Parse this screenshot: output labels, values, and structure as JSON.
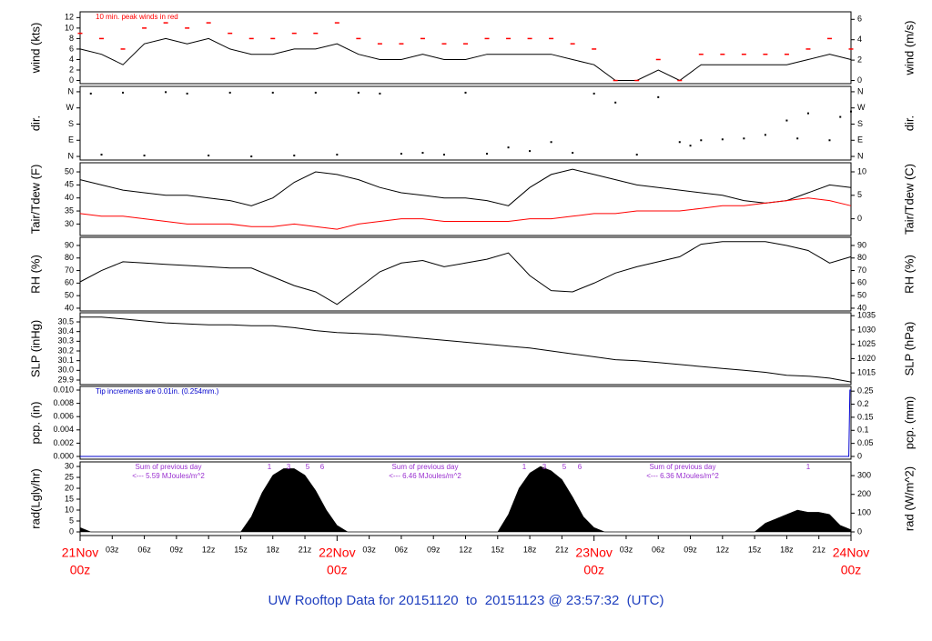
{
  "title": "UW Rooftop Data for 20151120  to  20151123 @ 23:57:32  (UTC)",
  "chart_data": [
    {
      "type": "line",
      "ylabel": "wind (kts)",
      "y2label": "wind (m/s)",
      "annotation": "10 min. peak winds in red",
      "xlim": [
        0,
        72
      ],
      "ylim": [
        -0.6,
        13.1
      ],
      "yticks": [
        0,
        2,
        4,
        6,
        8,
        10,
        12
      ],
      "y2lim": [
        -0.31,
        6.74
      ],
      "y2ticks": [
        0,
        2,
        4,
        6
      ],
      "x": [
        0,
        2,
        4,
        6,
        8,
        10,
        12,
        14,
        16,
        18,
        20,
        22,
        24,
        26,
        28,
        30,
        32,
        34,
        36,
        38,
        40,
        42,
        44,
        46,
        48,
        50,
        52,
        54,
        56,
        58,
        60,
        62,
        64,
        66,
        68,
        70,
        72
      ],
      "series": [
        {
          "color": "#000000",
          "values": [
            6,
            5,
            3,
            7,
            8,
            7,
            8,
            6,
            5,
            5,
            6,
            6,
            7,
            5,
            4,
            4,
            5,
            4,
            4,
            5,
            5,
            5,
            5,
            4,
            3,
            0,
            0,
            2,
            0,
            3,
            3,
            3,
            3,
            3,
            4,
            5,
            4
          ]
        },
        {
          "color": "#ff0000",
          "marker": "dash",
          "values": [
            9,
            8,
            6,
            10,
            11,
            10,
            11,
            9,
            8,
            8,
            9,
            9,
            11,
            8,
            7,
            7,
            8,
            7,
            7,
            8,
            8,
            8,
            8,
            7,
            6,
            0,
            0,
            4,
            0,
            5,
            5,
            5,
            5,
            5,
            6,
            8,
            6
          ]
        }
      ]
    },
    {
      "type": "scatter",
      "ylabel": "dir.",
      "y2label": "dir.",
      "xlim": [
        0,
        72
      ],
      "ylim": [
        -20,
        390
      ],
      "yticks": [
        {
          "value": 0,
          "label": "N"
        },
        {
          "value": 90,
          "label": "E"
        },
        {
          "value": 180,
          "label": "S"
        },
        {
          "value": 270,
          "label": "W"
        },
        {
          "value": 360,
          "label": "N"
        }
      ],
      "y2lim": [
        -20,
        390
      ],
      "y2ticks": [
        {
          "value": 0,
          "label": "N"
        },
        {
          "value": 90,
          "label": "E"
        },
        {
          "value": 180,
          "label": "S"
        },
        {
          "value": 270,
          "label": "W"
        },
        {
          "value": 360,
          "label": "N"
        }
      ],
      "x": [
        1,
        2,
        4,
        6,
        8,
        10,
        12,
        14,
        16,
        18,
        20,
        22,
        24,
        26,
        28,
        30,
        32,
        34,
        36,
        38,
        40,
        42,
        44,
        46,
        48,
        50,
        52,
        54,
        56,
        57,
        58,
        60,
        62,
        64,
        66,
        67,
        68,
        70,
        71,
        72
      ],
      "series": [
        {
          "color": "#000000",
          "values": [
            350,
            10,
            355,
            5,
            358,
            350,
            5,
            355,
            0,
            355,
            5,
            355,
            10,
            355,
            350,
            15,
            20,
            10,
            355,
            15,
            50,
            30,
            80,
            20,
            350,
            300,
            10,
            330,
            80,
            60,
            90,
            95,
            100,
            120,
            200,
            100,
            240,
            90,
            220,
            250
          ]
        }
      ]
    },
    {
      "type": "line",
      "ylabel": "Tair/Tdew (F)",
      "y2label": "Tair/Tdew (C)",
      "xlim": [
        0,
        72
      ],
      "ylim": [
        25.6,
        53.5
      ],
      "yticks": [
        30,
        35,
        40,
        45,
        50
      ],
      "y2lim": [
        -3.56,
        11.94
      ],
      "y2ticks": [
        0,
        5,
        10
      ],
      "x": [
        0,
        2,
        4,
        6,
        8,
        10,
        12,
        14,
        16,
        18,
        20,
        22,
        24,
        26,
        28,
        30,
        32,
        34,
        36,
        38,
        40,
        42,
        44,
        46,
        48,
        50,
        52,
        54,
        56,
        58,
        60,
        62,
        64,
        66,
        68,
        70,
        72
      ],
      "series": [
        {
          "color": "#000000",
          "values": [
            47,
            45,
            43,
            42,
            41,
            41,
            40,
            39,
            37,
            40,
            46,
            50,
            49,
            47,
            44,
            42,
            41,
            40,
            40,
            39,
            37,
            44,
            49,
            51,
            49,
            47,
            45,
            44,
            43,
            42,
            41,
            39,
            38,
            39,
            42,
            45,
            44
          ]
        },
        {
          "color": "#ff0000",
          "values": [
            34,
            33,
            33,
            32,
            31,
            30,
            30,
            30,
            29,
            29,
            30,
            29,
            28,
            30,
            31,
            32,
            32,
            31,
            31,
            31,
            31,
            32,
            32,
            33,
            34,
            34,
            35,
            35,
            35,
            36,
            37,
            37,
            38,
            39,
            40,
            39,
            37
          ]
        }
      ]
    },
    {
      "type": "line",
      "ylabel": "RH (%)",
      "y2label": "RH (%)",
      "xlim": [
        0,
        72
      ],
      "ylim": [
        37.8,
        96.5
      ],
      "yticks": [
        40,
        50,
        60,
        70,
        80,
        90
      ],
      "y2lim": [
        37.8,
        96.5
      ],
      "y2ticks": [
        40,
        50,
        60,
        70,
        80,
        90
      ],
      "x": [
        0,
        2,
        4,
        6,
        8,
        10,
        12,
        14,
        16,
        18,
        20,
        22,
        24,
        26,
        28,
        30,
        32,
        34,
        36,
        38,
        40,
        42,
        44,
        46,
        48,
        50,
        52,
        54,
        56,
        58,
        60,
        62,
        64,
        66,
        68,
        70,
        72
      ],
      "series": [
        {
          "color": "#000000",
          "values": [
            61,
            70,
            77,
            76,
            75,
            74,
            73,
            72,
            72,
            65,
            58,
            53,
            43,
            56,
            69,
            76,
            78,
            73,
            76,
            79,
            84,
            66,
            54,
            53,
            60,
            68,
            73,
            77,
            81,
            91,
            93,
            93,
            93,
            90,
            86,
            76,
            81
          ]
        }
      ]
    },
    {
      "type": "line",
      "ylabel": "SLP (inHg)",
      "y2label": "SLP (hPa)",
      "xlim": [
        0,
        72
      ],
      "ylim": [
        29.853,
        30.594
      ],
      "yticks": [
        29.9,
        {
          "value": 30,
          "label": "30.0"
        },
        30.1,
        30.2,
        30.3,
        30.4,
        30.5
      ],
      "y2lim": [
        1010.93,
        1036.02
      ],
      "y2ticks": [
        1015,
        1020,
        1025,
        1030,
        1035
      ],
      "x": [
        0,
        2,
        4,
        6,
        8,
        10,
        12,
        14,
        16,
        18,
        20,
        22,
        24,
        26,
        28,
        30,
        32,
        34,
        36,
        38,
        40,
        42,
        44,
        46,
        48,
        50,
        52,
        54,
        56,
        58,
        60,
        62,
        64,
        66,
        68,
        70,
        72
      ],
      "series": [
        {
          "color": "#000000",
          "values": [
            30.55,
            30.55,
            30.53,
            30.51,
            30.49,
            30.48,
            30.47,
            30.47,
            30.46,
            30.46,
            30.44,
            30.41,
            30.39,
            30.38,
            30.37,
            30.35,
            30.33,
            30.31,
            30.29,
            30.27,
            30.25,
            30.23,
            30.2,
            30.17,
            30.14,
            30.11,
            30.1,
            30.08,
            30.06,
            30.04,
            30.02,
            30,
            29.98,
            29.95,
            29.94,
            29.92,
            29.88
          ]
        }
      ]
    },
    {
      "type": "line",
      "ylabel": "pcp. (in)",
      "y2label": "pcp. (mm)",
      "annotation": "Tip increments are 0.01in. (0.254mm.)",
      "xlim": [
        0,
        72
      ],
      "ylim": [
        -0.00041,
        0.01055
      ],
      "yticks": [
        {
          "value": 0,
          "label": "0.000"
        },
        {
          "value": 0.002,
          "label": "0.002"
        },
        {
          "value": 0.004,
          "label": "0.004"
        },
        {
          "value": 0.006,
          "label": "0.006"
        },
        {
          "value": 0.008,
          "label": "0.008"
        },
        {
          "value": 0.01,
          "label": "0.010"
        }
      ],
      "y2lim": [
        -0.0104,
        0.268
      ],
      "y2ticks": [
        0,
        0.05,
        0.1,
        0.15,
        0.2,
        0.25
      ],
      "x": [
        0,
        71.8,
        71.9,
        72
      ],
      "series": [
        {
          "color": "#0000cc",
          "values": [
            0,
            0,
            0.01,
            0.01
          ]
        }
      ]
    },
    {
      "type": "area",
      "ylabel": "rad(Lgly/hr)",
      "y2label": "rad (W/m^2)",
      "xlim": [
        0,
        72
      ],
      "ylim": [
        -1.67,
        32.1
      ],
      "yticks": [
        0,
        5,
        10,
        15,
        20,
        25,
        30
      ],
      "y2lim": [
        -19.4,
        373.3
      ],
      "y2ticks": [
        0,
        100,
        200,
        300
      ],
      "daily_sums": [
        {
          "heading": "Sum of previous day",
          "text": "<--- 5.59 MJoules/m^2"
        },
        {
          "heading": "Sum of previous day",
          "text": "<--- 6.46 MJoules/m^2"
        },
        {
          "heading": "Sum of previous day",
          "text": "<--- 6.36 MJoules/m^2"
        }
      ],
      "hour_marks": [
        [
          "1",
          "3",
          "5",
          "6"
        ],
        [
          "1",
          "3",
          "5",
          "6"
        ],
        [
          "1"
        ]
      ],
      "x": [
        0,
        1,
        2,
        3,
        4,
        5,
        6,
        7,
        8,
        9,
        10,
        11,
        12,
        13,
        14,
        15,
        16,
        17,
        18,
        19,
        20,
        21,
        22,
        23,
        24,
        25,
        26,
        27,
        28,
        29,
        30,
        31,
        32,
        33,
        34,
        35,
        36,
        37,
        38,
        39,
        40,
        41,
        42,
        43,
        44,
        45,
        46,
        47,
        48,
        49,
        50,
        51,
        52,
        53,
        54,
        55,
        56,
        57,
        58,
        59,
        60,
        61,
        62,
        63,
        64,
        65,
        66,
        67,
        68,
        69,
        70,
        71,
        72
      ],
      "series": [
        {
          "color": "#000000",
          "values": [
            2,
            0,
            0,
            0,
            0,
            0,
            0,
            0,
            0,
            0,
            0,
            0,
            0,
            0,
            0,
            0,
            7,
            18,
            26,
            29,
            29,
            26,
            19,
            10,
            3,
            0,
            0,
            0,
            0,
            0,
            0,
            0,
            0,
            0,
            0,
            0,
            0,
            0,
            0,
            0,
            8,
            20,
            27,
            30,
            28,
            24,
            16,
            7,
            2,
            0,
            0,
            0,
            0,
            0,
            0,
            0,
            0,
            0,
            0,
            0,
            0,
            0,
            0,
            0,
            4,
            6,
            8,
            10,
            9,
            9,
            8,
            3,
            1
          ]
        }
      ],
      "xticks": [
        {
          "value": 3,
          "label": "03z"
        },
        {
          "value": 6,
          "label": "06z"
        },
        {
          "value": 9,
          "label": "09z"
        },
        {
          "value": 12,
          "label": "12z"
        },
        {
          "value": 15,
          "label": "15z"
        },
        {
          "value": 18,
          "label": "18z"
        },
        {
          "value": 21,
          "label": "21z"
        },
        {
          "value": 27,
          "label": "03z"
        },
        {
          "value": 30,
          "label": "06z"
        },
        {
          "value": 33,
          "label": "09z"
        },
        {
          "value": 36,
          "label": "12z"
        },
        {
          "value": 39,
          "label": "15z"
        },
        {
          "value": 42,
          "label": "18z"
        },
        {
          "value": 45,
          "label": "21z"
        },
        {
          "value": 51,
          "label": "03z"
        },
        {
          "value": 54,
          "label": "06z"
        },
        {
          "value": 57,
          "label": "09z"
        },
        {
          "value": 60,
          "label": "12z"
        },
        {
          "value": 63,
          "label": "15z"
        },
        {
          "value": 66,
          "label": "18z"
        },
        {
          "value": 69,
          "label": "21z"
        }
      ],
      "day_ticks": [
        {
          "value": 0,
          "label": "21Nov"
        },
        {
          "value": 24,
          "label": "22Nov"
        },
        {
          "value": 48,
          "label": "23Nov"
        },
        {
          "value": 72,
          "label": "24Nov"
        }
      ],
      "day_sublabel": "00z"
    }
  ]
}
